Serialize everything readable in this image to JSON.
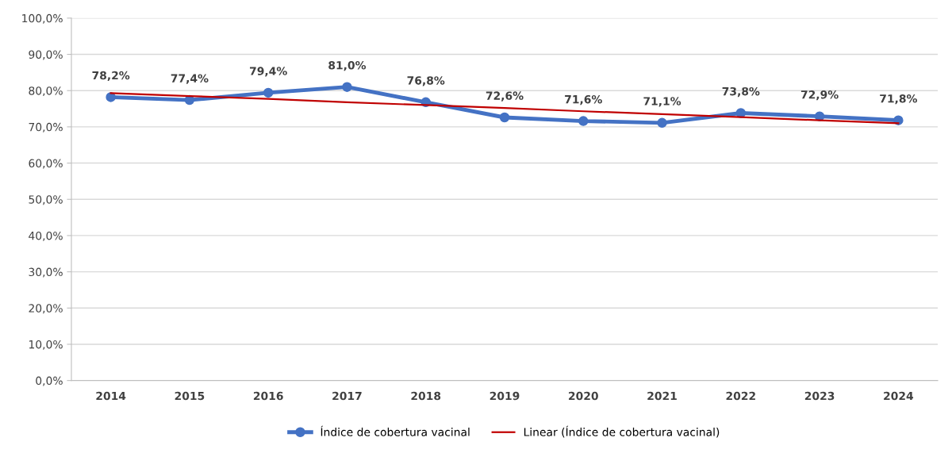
{
  "chart_data": {
    "type": "line",
    "categories": [
      "2014",
      "2015",
      "2016",
      "2017",
      "2018",
      "2019",
      "2020",
      "2021",
      "2022",
      "2023",
      "2024"
    ],
    "series": [
      {
        "name": "Índice de cobertura vacinal",
        "color": "#4472c4",
        "marker": "circle",
        "values": [
          78.2,
          77.4,
          79.4,
          81.0,
          76.8,
          72.6,
          71.6,
          71.1,
          73.8,
          72.9,
          71.8
        ],
        "value_labels": [
          "78,2%",
          "77,4%",
          "79,4%",
          "81,0%",
          "76,8%",
          "72,6%",
          "71,6%",
          "71,1%",
          "73,8%",
          "72,9%",
          "71,8%"
        ]
      },
      {
        "name": "Linear (Índice de cobertura vacinal)",
        "color": "#c00000",
        "type": "line",
        "marker": "none",
        "values": [
          79.3,
          78.5,
          77.7,
          76.8,
          76.0,
          75.2,
          74.3,
          73.5,
          72.7,
          71.8,
          71.0
        ]
      }
    ],
    "ylim": [
      0,
      100
    ],
    "yticks": [
      {
        "value": 0,
        "label": "0,0%"
      },
      {
        "value": 10,
        "label": "10,0%"
      },
      {
        "value": 20,
        "label": "20,0%"
      },
      {
        "value": 30,
        "label": "30,0%"
      },
      {
        "value": 40,
        "label": "40,0%"
      },
      {
        "value": 50,
        "label": "50,0%"
      },
      {
        "value": 60,
        "label": "60,0%"
      },
      {
        "value": 70,
        "label": "70,0%"
      },
      {
        "value": 80,
        "label": "80,0%"
      },
      {
        "value": 90,
        "label": "90,0%"
      },
      {
        "value": 100,
        "label": "100,0%"
      }
    ],
    "grid": "y",
    "legend": "bottom"
  }
}
